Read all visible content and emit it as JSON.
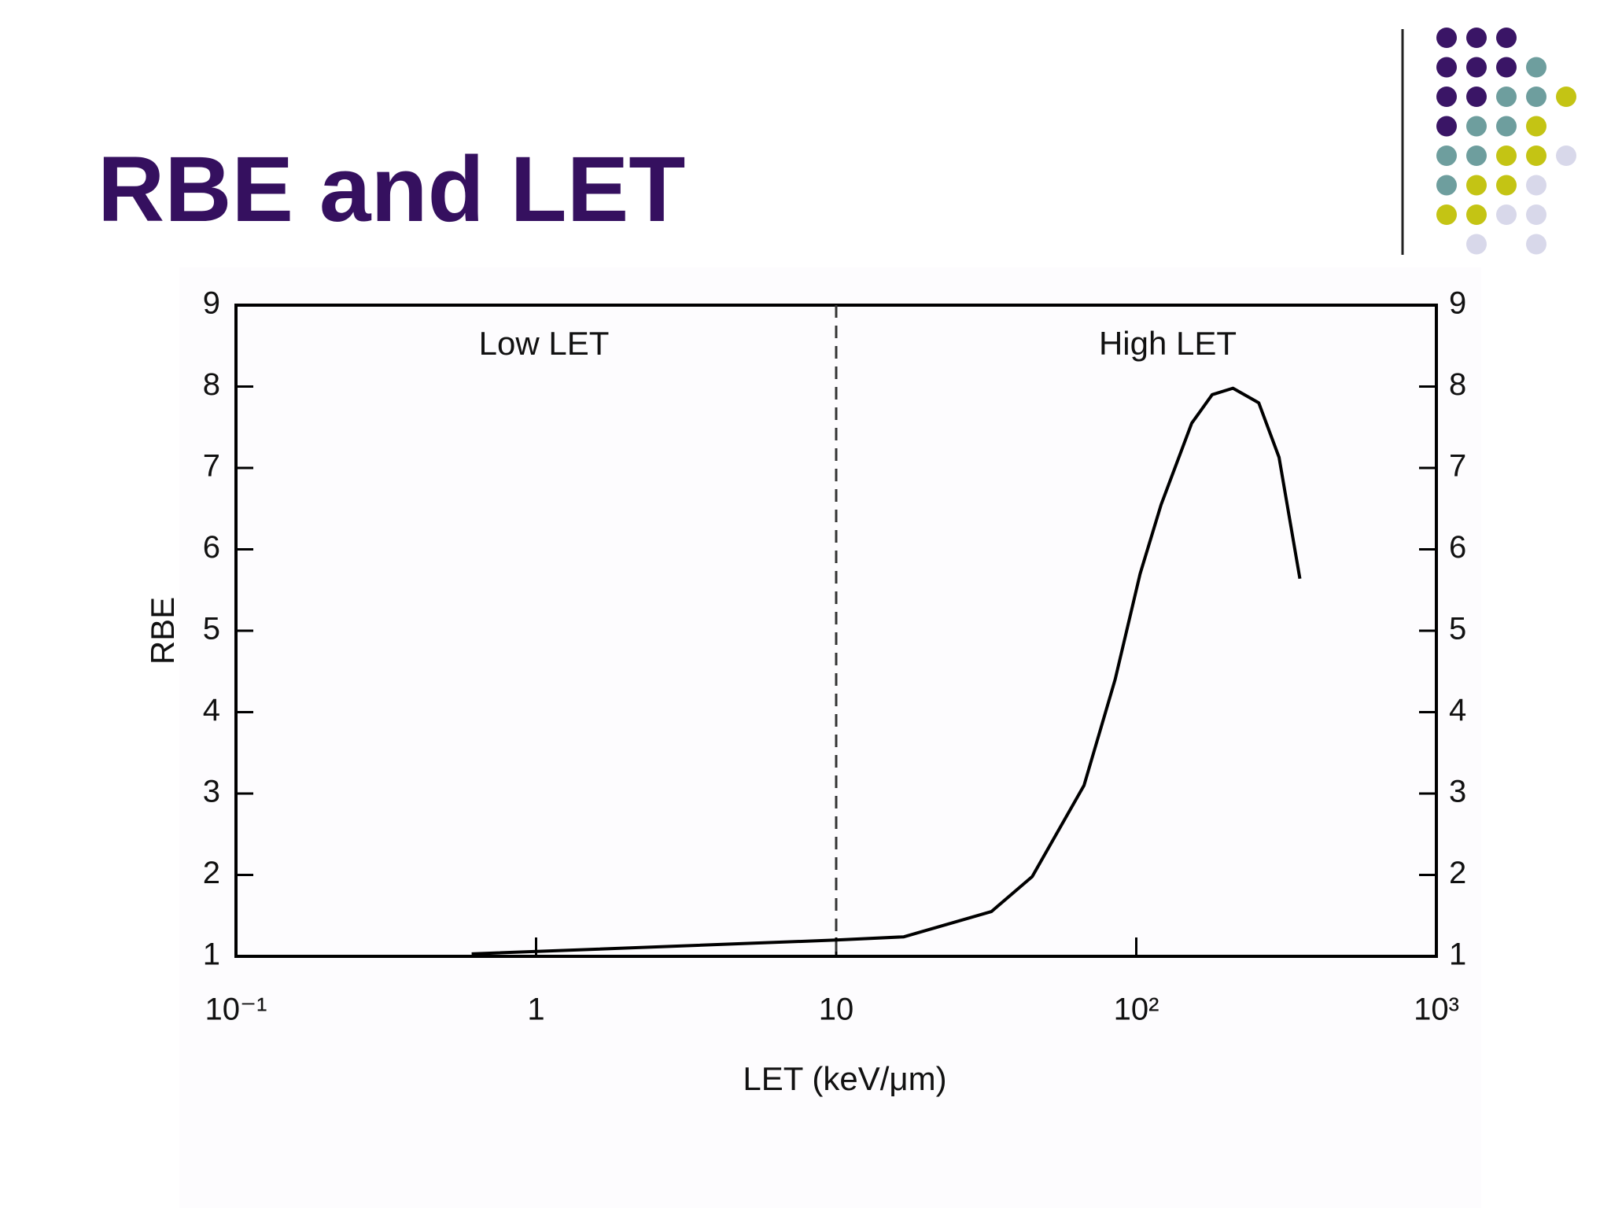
{
  "title": "RBE and LET",
  "chart_data": {
    "type": "line",
    "x": [
      0.61,
      10,
      16.8,
      32.9,
      45,
      67,
      85,
      103,
      121,
      153,
      179,
      210,
      256,
      299,
      351
    ],
    "values": [
      1.03,
      1.2,
      1.24,
      1.55,
      1.98,
      3.1,
      4.4,
      5.7,
      6.55,
      7.55,
      7.9,
      7.98,
      7.8,
      7.13,
      5.64
    ],
    "color": "#000000",
    "xlabel": "LET (keV/μm)",
    "ylabel": "RBE",
    "xscale": "log",
    "xlim": [
      0.1,
      1000
    ],
    "xticks": [
      {
        "value": 0.1,
        "label": "10⁻¹"
      },
      1,
      10,
      {
        "value": 100,
        "label": "10²"
      },
      {
        "value": 1000,
        "label": "10³"
      }
    ],
    "ylim": [
      1,
      9
    ],
    "yticks": [
      1,
      2,
      3,
      4,
      5,
      6,
      7,
      8,
      9
    ],
    "divider_x": 10,
    "annotations": [
      "Low LET",
      "High LET"
    ]
  }
}
